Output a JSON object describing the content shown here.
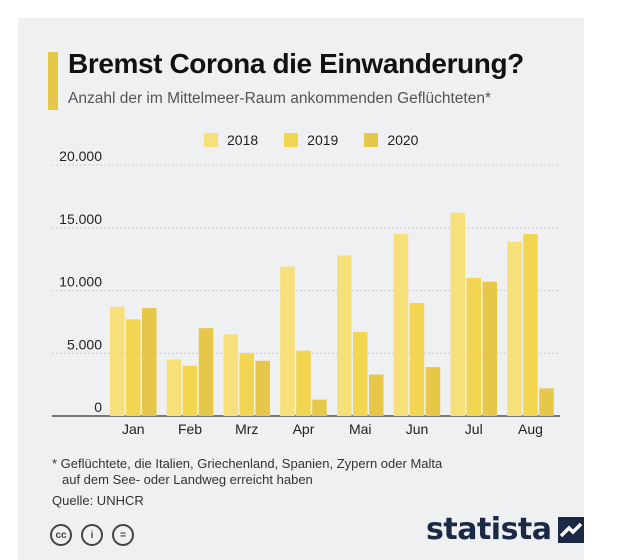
{
  "header": {
    "title": "Bremst Corona die Einwanderung?",
    "subtitle": "Anzahl der im Mittelmeer-Raum ankommenden Geflüchteten*"
  },
  "legend": [
    {
      "label": "2018",
      "color": "#f7e07a"
    },
    {
      "label": "2019",
      "color": "#f2d550"
    },
    {
      "label": "2020",
      "color": "#e6c74a"
    }
  ],
  "chart_data": {
    "type": "bar",
    "categories": [
      "Jan",
      "Feb",
      "Mrz",
      "Apr",
      "Mai",
      "Jun",
      "Jul",
      "Aug"
    ],
    "series": [
      {
        "name": "2018",
        "color": "#f7e07a",
        "values": [
          8700,
          4500,
          6500,
          11900,
          12800,
          14500,
          16200,
          13900
        ]
      },
      {
        "name": "2019",
        "color": "#f2d550",
        "values": [
          7700,
          4000,
          5000,
          5200,
          6700,
          9000,
          11000,
          14500
        ]
      },
      {
        "name": "2020",
        "color": "#e6c74a",
        "values": [
          8600,
          7000,
          4400,
          1300,
          3300,
          3900,
          10700,
          2200
        ]
      }
    ],
    "ylim": [
      0,
      20000
    ],
    "yticks": [
      0,
      5000,
      10000,
      15000,
      20000
    ],
    "ytick_labels": [
      "0",
      "5.000",
      "10.000",
      "15.000",
      "20.000"
    ],
    "grid": true,
    "title": "Bremst Corona die Einwanderung?",
    "ylabel": "",
    "xlabel": ""
  },
  "footnote": {
    "line1": "* Geflüchtete, die Italien, Griechenland, Spanien, Zypern oder Malta",
    "line2": "auf dem See- oder Landweg erreicht haben"
  },
  "source": "Quelle: UNHCR",
  "license_icons": [
    {
      "name": "cc-icon",
      "glyph": "cc"
    },
    {
      "name": "by-icon",
      "glyph": "i"
    },
    {
      "name": "nd-icon",
      "glyph": "="
    }
  ],
  "brand": {
    "name": "statista"
  }
}
